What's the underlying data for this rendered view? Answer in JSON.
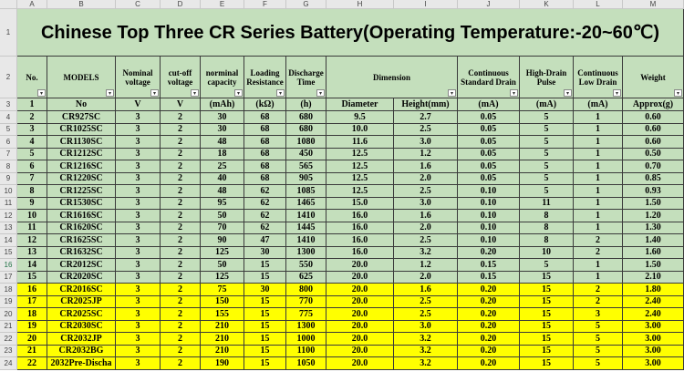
{
  "columns": [
    "A",
    "B",
    "C",
    "D",
    "E",
    "F",
    "G",
    "H",
    "I",
    "J",
    "K",
    "L",
    "M"
  ],
  "title": "Chinese Top Three CR Series Battery(Operating Temperature:-20~60℃)",
  "headers": [
    "No.",
    "MODELS",
    "Nominal voltage",
    "cut-off voltage",
    "norminal capacity",
    "Loading Resistance",
    "Discharge Time",
    "Dimension",
    "Continuous Standard Drain",
    "High-Drain Pulse",
    "Continuous Low Drain",
    "Weight"
  ],
  "units": [
    "1",
    "No",
    "V",
    "V",
    "(mAh)",
    "(kΩ)",
    "(h)",
    "Diameter",
    "Height(mm)",
    "(mA)",
    "(mA)",
    "(mA)",
    "Approx(g)"
  ],
  "row_numbers": [
    "1",
    "2",
    "3",
    "4",
    "5",
    "6",
    "7",
    "8",
    "9",
    "10",
    "11",
    "12",
    "13",
    "14",
    "15",
    "16",
    "17",
    "18",
    "19",
    "20",
    "21",
    "22",
    "23",
    "24"
  ],
  "selected_row": "16",
  "colors": {
    "green": "#c4dfbc",
    "yellow": "#ffff00"
  },
  "rows": [
    [
      "2",
      "CR927SC",
      "3",
      "2",
      "30",
      "68",
      "680",
      "9.5",
      "2.7",
      "0.05",
      "5",
      "1",
      "0.60"
    ],
    [
      "3",
      "CR1025SC",
      "3",
      "2",
      "30",
      "68",
      "680",
      "10.0",
      "2.5",
      "0.05",
      "5",
      "1",
      "0.60"
    ],
    [
      "4",
      "CR1130SC",
      "3",
      "2",
      "48",
      "68",
      "1080",
      "11.6",
      "3.0",
      "0.05",
      "5",
      "1",
      "0.60"
    ],
    [
      "5",
      "CR1212SC",
      "3",
      "2",
      "18",
      "68",
      "450",
      "12.5",
      "1.2",
      "0.05",
      "5",
      "1",
      "0.50"
    ],
    [
      "6",
      "CR1216SC",
      "3",
      "2",
      "25",
      "68",
      "565",
      "12.5",
      "1.6",
      "0.05",
      "5",
      "1",
      "0.70"
    ],
    [
      "7",
      "CR1220SC",
      "3",
      "2",
      "40",
      "68",
      "905",
      "12.5",
      "2.0",
      "0.05",
      "5",
      "1",
      "0.85"
    ],
    [
      "8",
      "CR1225SC",
      "3",
      "2",
      "48",
      "62",
      "1085",
      "12.5",
      "2.5",
      "0.10",
      "5",
      "1",
      "0.93"
    ],
    [
      "9",
      "CR1530SC",
      "3",
      "2",
      "95",
      "62",
      "1465",
      "15.0",
      "3.0",
      "0.10",
      "11",
      "1",
      "1.50"
    ],
    [
      "10",
      "CR1616SC",
      "3",
      "2",
      "50",
      "62",
      "1410",
      "16.0",
      "1.6",
      "0.10",
      "8",
      "1",
      "1.20"
    ],
    [
      "11",
      "CR1620SC",
      "3",
      "2",
      "70",
      "62",
      "1445",
      "16.0",
      "2.0",
      "0.10",
      "8",
      "1",
      "1.30"
    ],
    [
      "12",
      "CR1625SC",
      "3",
      "2",
      "90",
      "47",
      "1410",
      "16.0",
      "2.5",
      "0.10",
      "8",
      "2",
      "1.40"
    ],
    [
      "13",
      "CR1632SC",
      "3",
      "2",
      "125",
      "30",
      "1300",
      "16.0",
      "3.2",
      "0.20",
      "10",
      "2",
      "1.60"
    ],
    [
      "14",
      "CR2012SC",
      "3",
      "2",
      "50",
      "15",
      "550",
      "20.0",
      "1.2",
      "0.15",
      "5",
      "1",
      "1.50"
    ],
    [
      "15",
      "CR2020SC",
      "3",
      "2",
      "125",
      "15",
      "625",
      "20.0",
      "2.0",
      "0.15",
      "15",
      "1",
      "2.10"
    ],
    [
      "16",
      "CR2016SC",
      "3",
      "2",
      "75",
      "30",
      "800",
      "20.0",
      "1.6",
      "0.20",
      "15",
      "2",
      "1.80"
    ],
    [
      "17",
      "CR2025JP",
      "3",
      "2",
      "150",
      "15",
      "770",
      "20.0",
      "2.5",
      "0.20",
      "15",
      "2",
      "2.40"
    ],
    [
      "18",
      "CR2025SC",
      "3",
      "2",
      "155",
      "15",
      "775",
      "20.0",
      "2.5",
      "0.20",
      "15",
      "3",
      "2.40"
    ],
    [
      "19",
      "CR2030SC",
      "3",
      "2",
      "210",
      "15",
      "1300",
      "20.0",
      "3.0",
      "0.20",
      "15",
      "5",
      "3.00"
    ],
    [
      "20",
      "CR2032JP",
      "3",
      "2",
      "210",
      "15",
      "1000",
      "20.0",
      "3.2",
      "0.20",
      "15",
      "5",
      "3.00"
    ],
    [
      "21",
      "CR2032BG",
      "3",
      "2",
      "210",
      "15",
      "1100",
      "20.0",
      "3.2",
      "0.20",
      "15",
      "5",
      "3.00"
    ],
    [
      "22",
      "2032Pre-Discha",
      "3",
      "2",
      "190",
      "15",
      "1050",
      "20.0",
      "3.2",
      "0.20",
      "15",
      "5",
      "3.00"
    ]
  ]
}
